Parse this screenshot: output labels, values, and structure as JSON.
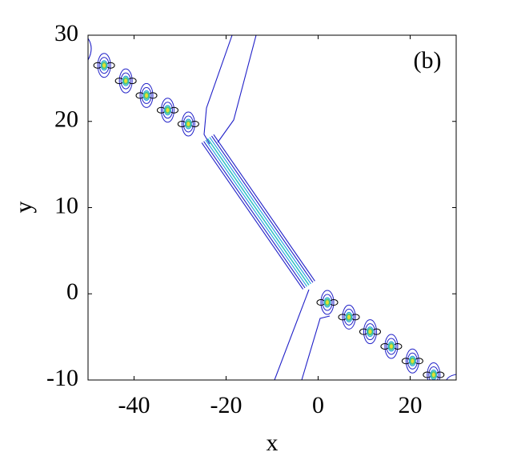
{
  "chart_data": {
    "type": "contour",
    "annotation": "(b)",
    "xlabel": "x",
    "ylabel": "y",
    "xlim": [
      -50,
      30
    ],
    "xticks": [
      -40,
      -20,
      0,
      20
    ],
    "ylim": [
      -10,
      30
    ],
    "yticks": [
      -10,
      0,
      10,
      20,
      30
    ],
    "color": "#2020c8",
    "peaks": {
      "x": [
        -46.5,
        -41.8,
        -37.3,
        -32.7,
        -28.2,
        2,
        6.7,
        11.3,
        15.9,
        20.5,
        25.1
      ],
      "y": [
        26.5,
        24.7,
        23,
        21.3,
        19.7,
        -1,
        -2.7,
        -4.4,
        -6.1,
        -7.8,
        -9.4
      ]
    },
    "soliton": {
      "x": [
        -24,
        -2
      ],
      "y": [
        18,
        1
      ]
    }
  }
}
